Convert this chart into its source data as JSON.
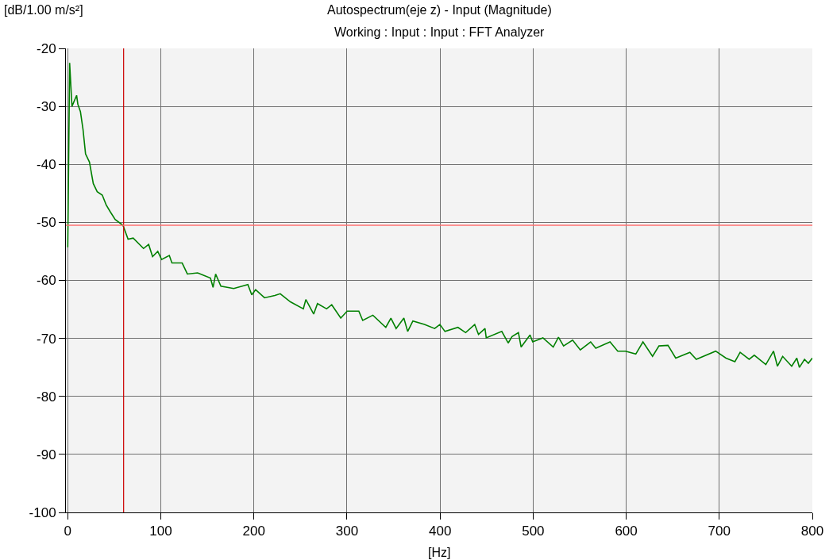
{
  "chart_data": {
    "type": "line",
    "title": "Autospectrum(eje z) - Input (Magnitude)",
    "subtitle": "Working : Input : Input : FFT Analyzer",
    "xlabel": "[Hz]",
    "ylabel": "[dB/1.00 m/s²]",
    "xlim": [
      -2,
      800
    ],
    "xticks": [
      0,
      100,
      200,
      300,
      400,
      500,
      600,
      700,
      800
    ],
    "ylim": [
      -100,
      -20
    ],
    "yticks": [
      -100,
      -90,
      -80,
      -70,
      -60,
      -50,
      -40,
      -30,
      -20
    ],
    "grid": true,
    "marker": "none",
    "line_style": "solid",
    "series": [
      {
        "color": "#008000",
        "x": [
          0,
          2,
          4.5,
          9.5,
          10.8,
          13.6,
          16.4,
          19.1,
          23.3,
          27.4,
          31.6,
          37.1,
          41.3,
          45.4,
          50.9,
          59.3,
          64.8,
          70.3,
          81.4,
          86.9,
          91.1,
          96.7,
          100.8,
          109.1,
          111.9,
          122.9,
          128.5,
          139.5,
          153.3,
          156.1,
          158.9,
          164.5,
          178.3,
          193.5,
          197.7,
          201.8,
          211.4,
          222.5,
          228.3,
          239.2,
          253.1,
          255.8,
          264.2,
          268.3,
          278.1,
          283.6,
          293.3,
          300.2,
          312.7,
          316.9,
          327.8,
          341.7,
          347.2,
          352.8,
          361.1,
          365.2,
          370.8,
          383.2,
          394.2,
          399.8,
          405.3,
          419.2,
          427.5,
          437.2,
          441.3,
          448.3,
          449.6,
          466.3,
          473.2,
          477.3,
          484.2,
          487.1,
          496.7,
          499.5,
          510.5,
          521.6,
          527.2,
          532.7,
          542.4,
          550.7,
          561.8,
          567.3,
          582.6,
          590.9,
          599.2,
          610.3,
          618.0,
          628.3,
          635.2,
          644.9,
          653.2,
          668.4,
          675.3,
          696.1,
          707.2,
          716.8,
          722.4,
          732.1,
          737.6,
          750.0,
          758.3,
          762.5,
          768.1,
          777.8,
          783.3,
          786.1,
          791.6,
          795.7,
          799.9
        ],
        "values": [
          -54.3,
          -22.5,
          -30.0,
          -28.1,
          -29.6,
          -30.9,
          -34.0,
          -38.2,
          -39.6,
          -43.3,
          -44.7,
          -45.3,
          -47.0,
          -48.1,
          -49.5,
          -50.5,
          -52.9,
          -52.7,
          -54.5,
          -53.8,
          -55.9,
          -55.0,
          -56.4,
          -55.7,
          -57.0,
          -57.0,
          -58.9,
          -58.7,
          -59.6,
          -61.2,
          -58.9,
          -61.0,
          -61.4,
          -60.7,
          -62.5,
          -61.6,
          -63.0,
          -62.6,
          -62.3,
          -63.7,
          -64.9,
          -63.3,
          -65.8,
          -64.0,
          -64.9,
          -64.2,
          -66.5,
          -65.3,
          -65.3,
          -66.9,
          -66.0,
          -68.1,
          -66.5,
          -68.3,
          -66.5,
          -68.8,
          -67.0,
          -67.6,
          -68.3,
          -67.6,
          -68.8,
          -68.1,
          -69.0,
          -67.6,
          -69.3,
          -68.3,
          -69.9,
          -68.8,
          -70.8,
          -69.7,
          -69.0,
          -71.5,
          -69.4,
          -70.6,
          -69.9,
          -71.5,
          -69.8,
          -71.3,
          -70.3,
          -72.0,
          -70.6,
          -71.7,
          -70.6,
          -72.2,
          -72.2,
          -72.7,
          -70.6,
          -73.1,
          -71.3,
          -71.2,
          -73.4,
          -72.4,
          -73.6,
          -72.2,
          -73.4,
          -74.0,
          -72.4,
          -73.6,
          -72.9,
          -74.5,
          -72.2,
          -74.8,
          -73.1,
          -74.8,
          -73.4,
          -75.0,
          -73.6,
          -74.3,
          -73.4
        ]
      }
    ],
    "ref_lines": [
      {
        "axis": "x",
        "value": 60,
        "color": "#cc0000",
        "line_style": "solid"
      },
      {
        "axis": "y",
        "value": -50.5,
        "color": "#ff7070",
        "line_style": "solid"
      }
    ]
  }
}
